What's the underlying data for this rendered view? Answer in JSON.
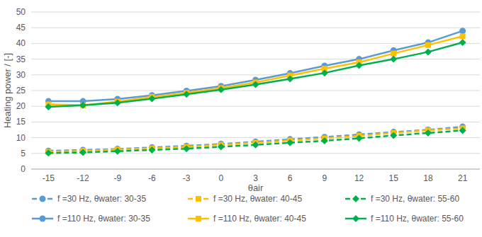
{
  "chart_data": {
    "type": "line",
    "x_label": "θair",
    "y_label": "Heating power / [-]",
    "categories": [
      "-15",
      "-12",
      "-9",
      "-6",
      "-3",
      "0",
      "3",
      "6",
      "9",
      "12",
      "15",
      "18",
      "21"
    ],
    "ylim": [
      0,
      50
    ],
    "yticks": [
      0,
      5,
      10,
      15,
      20,
      25,
      30,
      35,
      40,
      45,
      50
    ],
    "grid": true,
    "legend": "bottom",
    "series": [
      {
        "name": "f =30 Hz, θwater: 30-35",
        "color": "#5b9bd5",
        "marker": "circle",
        "line_style": "dashed",
        "values": [
          5.8,
          6.1,
          6.4,
          6.9,
          7.4,
          8.0,
          8.7,
          9.5,
          10.2,
          11.0,
          11.8,
          12.5,
          13.5
        ]
      },
      {
        "name": "f =30 Hz, θwater: 40-45",
        "color": "#ffc000",
        "marker": "square",
        "line_style": "dashed",
        "values": [
          5.5,
          5.8,
          6.2,
          6.6,
          7.1,
          7.7,
          8.4,
          9.1,
          9.8,
          10.6,
          11.5,
          12.3,
          13.0
        ]
      },
      {
        "name": "f =30 Hz, θwater: 55-60",
        "color": "#00b050",
        "marker": "diamond",
        "line_style": "dashed",
        "values": [
          5.1,
          5.3,
          5.7,
          6.1,
          6.5,
          7.1,
          7.7,
          8.4,
          9.0,
          9.8,
          10.7,
          11.5,
          12.3
        ]
      },
      {
        "name": "f =110 Hz, θwater: 30-35",
        "color": "#5b9bd5",
        "marker": "circle",
        "line_style": "solid",
        "values": [
          21.6,
          21.6,
          22.3,
          23.5,
          24.9,
          26.4,
          28.4,
          30.5,
          32.9,
          35.0,
          37.8,
          40.3,
          44.0
        ]
      },
      {
        "name": "f =110 Hz, θwater: 40-45",
        "color": "#ffc000",
        "marker": "square",
        "line_style": "solid",
        "values": [
          20.6,
          20.3,
          21.5,
          23.0,
          24.3,
          25.8,
          27.6,
          29.8,
          32.0,
          34.0,
          36.8,
          39.5,
          42.3
        ]
      },
      {
        "name": "f =110 Hz, θwater: 55-60",
        "color": "#00b050",
        "marker": "diamond",
        "line_style": "solid",
        "values": [
          19.8,
          20.3,
          21.1,
          22.4,
          23.8,
          25.3,
          26.9,
          28.7,
          30.6,
          33.0,
          35.0,
          37.3,
          40.3
        ]
      }
    ]
  }
}
